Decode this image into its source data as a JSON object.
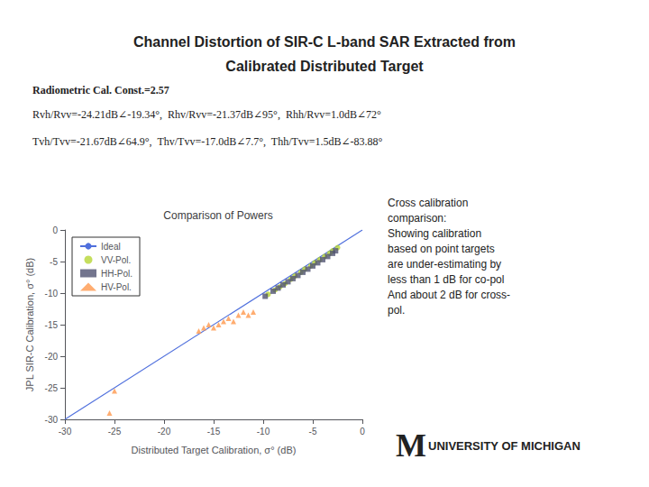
{
  "chart_data": {
    "type": "scatter",
    "title": "Comparison of Powers",
    "annotations": [
      "Channel Distortion of SIR-C L-band SAR Extracted from",
      "Calibrated Distributed Target",
      "Radiometric Cal. Const.=2.57",
      "Rvh/Rvv=-24.21dB∠-19.34°,  Rhv/Rvv=-21.37dB∠95°,  Rhh/Rvv=1.0dB∠72°",
      "Tvh/Tvv=-21.67dB∠64.9°,  Thv/Tvv=-17.0dB∠7.7°,  Thh/Tvv=1.5dB∠-83.88°",
      "Cross calibration\ncomparison:\nShowing calibration\nbased on point targets\nare under-estimating by\nless than 1 dB for co-pol\nAnd about 2 dB for cross-\npol.",
      "M",
      "UNIVERSITY OF MICHIGAN"
    ],
    "xlabel": "Distributed Target Calibration, σ° (dB)",
    "ylabel": "JPL SIR-C Calibration, σ° (dB)",
    "xlim": [
      -30,
      0
    ],
    "ylim": [
      -30,
      0
    ],
    "xticks": [
      -30,
      -25,
      -20,
      -15,
      -10,
      -5,
      0
    ],
    "yticks": [
      -30,
      -25,
      -20,
      -15,
      -10,
      -5,
      0
    ],
    "grid": false,
    "legend": "upper left",
    "series": [
      {
        "name": "Ideal",
        "type": "line",
        "line_style": "solid",
        "x": [
          -30,
          0
        ],
        "values": [
          -30,
          0
        ]
      },
      {
        "name": "VV-Pol.",
        "type": "scatter",
        "marker": "circle",
        "x": [
          -9.5,
          -8.8,
          -8.3,
          -7.8,
          -7.2,
          -6.8,
          -6.2,
          -5.8,
          -5.2,
          -4.8,
          -4.3,
          -3.8,
          -3.3,
          -3.0,
          -2.5
        ],
        "values": [
          -10.2,
          -9.5,
          -9.0,
          -8.5,
          -7.8,
          -7.3,
          -6.7,
          -6.2,
          -5.7,
          -5.2,
          -4.7,
          -4.2,
          -3.7,
          -3.3,
          -2.8
        ]
      },
      {
        "name": "HH-Pol.",
        "type": "scatter",
        "marker": "square",
        "x": [
          -9.8,
          -9.0,
          -8.5,
          -8.0,
          -7.5,
          -7.0,
          -6.5,
          -6.0,
          -5.5,
          -5.0,
          -4.5,
          -4.0,
          -3.5,
          -3.0,
          -2.7
        ],
        "values": [
          -10.5,
          -9.7,
          -9.2,
          -8.7,
          -8.2,
          -7.7,
          -7.2,
          -6.7,
          -6.2,
          -5.7,
          -5.2,
          -4.7,
          -4.2,
          -3.7,
          -3.3
        ]
      },
      {
        "name": "HV-Pol.",
        "type": "scatter",
        "marker": "triangle",
        "x": [
          -16.5,
          -16.0,
          -15.5,
          -15.0,
          -14.5,
          -14.0,
          -13.5,
          -13.0,
          -12.5,
          -12.0,
          -11.5,
          -11.0,
          -25.0,
          -25.5
        ],
        "values": [
          -16.0,
          -15.5,
          -15.0,
          -15.5,
          -15.0,
          -14.5,
          -14.0,
          -14.5,
          -13.5,
          -13.0,
          -13.5,
          -13.0,
          -25.5,
          -29.0
        ]
      }
    ]
  }
}
